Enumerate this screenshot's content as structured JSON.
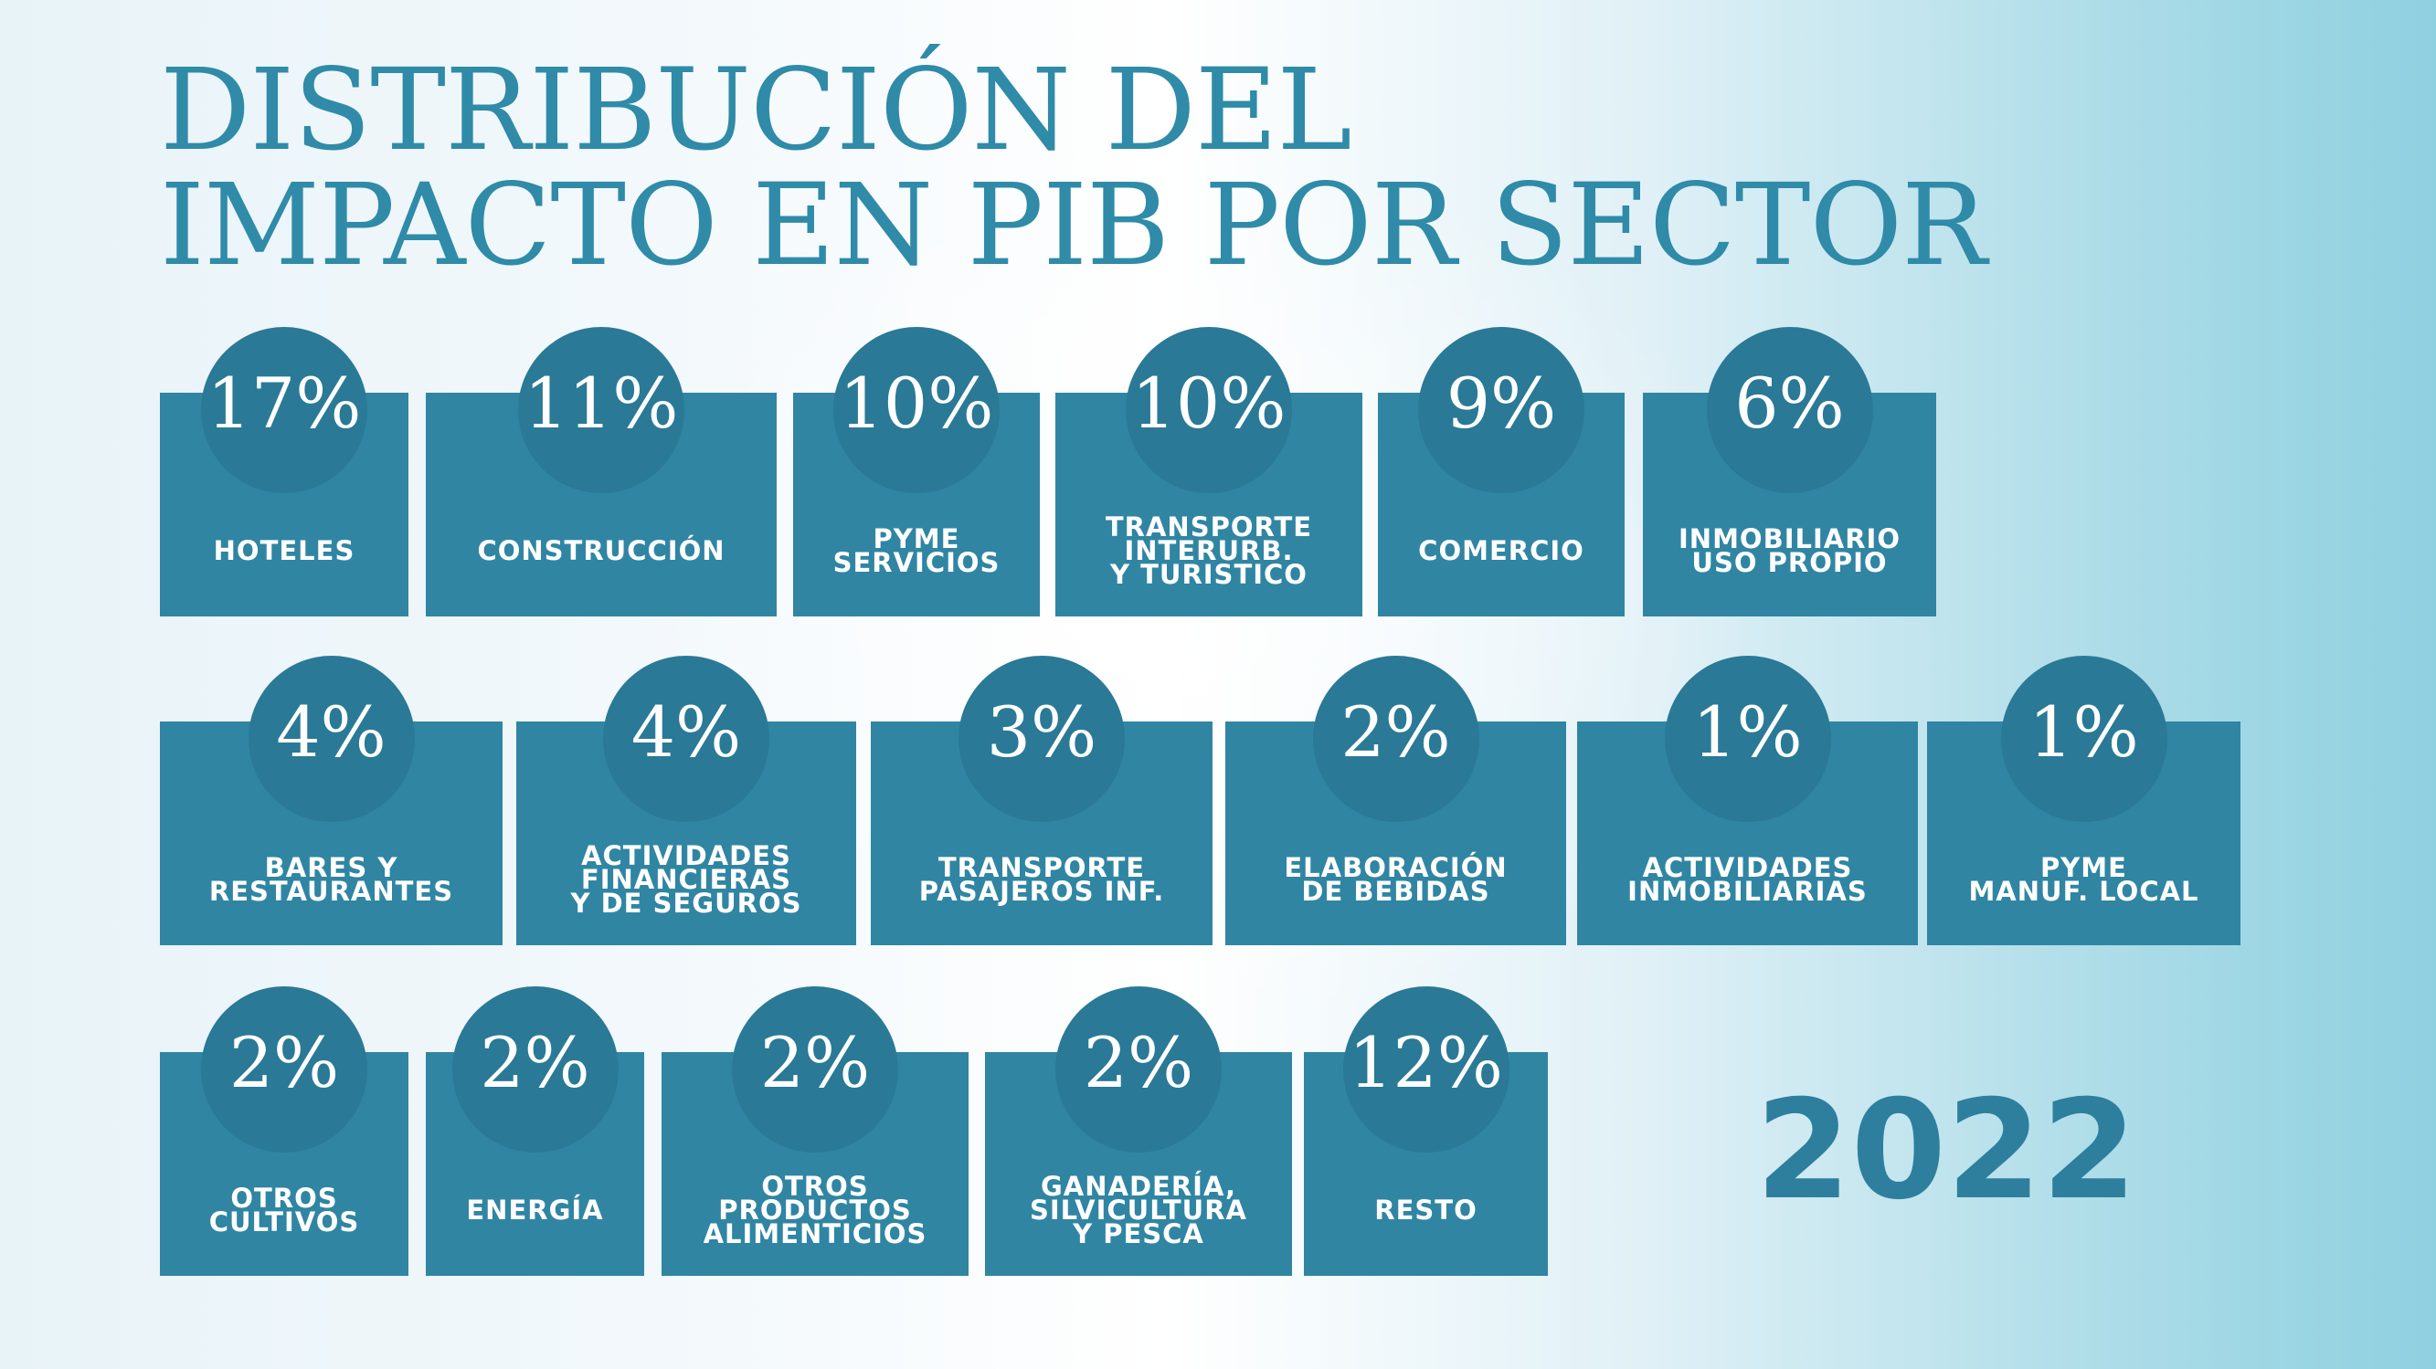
{
  "title": {
    "line1": "DISTRIBUCIÓN DEL",
    "line2": "IMPACTO EN PIB POR SECTOR"
  },
  "year": "2022",
  "colors": {
    "tile": "#3085a3",
    "circle": "#2a7996",
    "title_text": "#2f8ba8",
    "year_text": "#2d7f9d"
  },
  "sectors": [
    {
      "value": "17%",
      "label": "HOTELES"
    },
    {
      "value": "11%",
      "label": "CONSTRUCCIÓN"
    },
    {
      "value": "10%",
      "label": "PYME\nSERVICIOS"
    },
    {
      "value": "10%",
      "label": "TRANSPORTE\nINTERURB.\nY TURISTICO"
    },
    {
      "value": "9%",
      "label": "COMERCIO"
    },
    {
      "value": "6%",
      "label": "INMOBILIARIO\nUSO PROPIO"
    },
    {
      "value": "4%",
      "label": "BARES Y\nRESTAURANTES"
    },
    {
      "value": "4%",
      "label": "ACTIVIDADES\nFINANCIERAS\nY DE SEGUROS"
    },
    {
      "value": "3%",
      "label": "TRANSPORTE\nPASAJEROS INF."
    },
    {
      "value": "2%",
      "label": "ELABORACIÓN\nDE BEBIDAS"
    },
    {
      "value": "1%",
      "label": "ACTIVIDADES\nINMOBILIARIAS"
    },
    {
      "value": "1%",
      "label": "PYME\nMANUF. LOCAL"
    },
    {
      "value": "2%",
      "label": "OTROS\nCULTIVOS"
    },
    {
      "value": "2%",
      "label": "ENERGÍA"
    },
    {
      "value": "2%",
      "label": "OTROS\nPRODUCTOS\nALIMENTICIOS"
    },
    {
      "value": "2%",
      "label": "GANADERÍA,\nSILVICULTURA\nY PESCA"
    },
    {
      "value": "12%",
      "label": "RESTO"
    }
  ]
}
